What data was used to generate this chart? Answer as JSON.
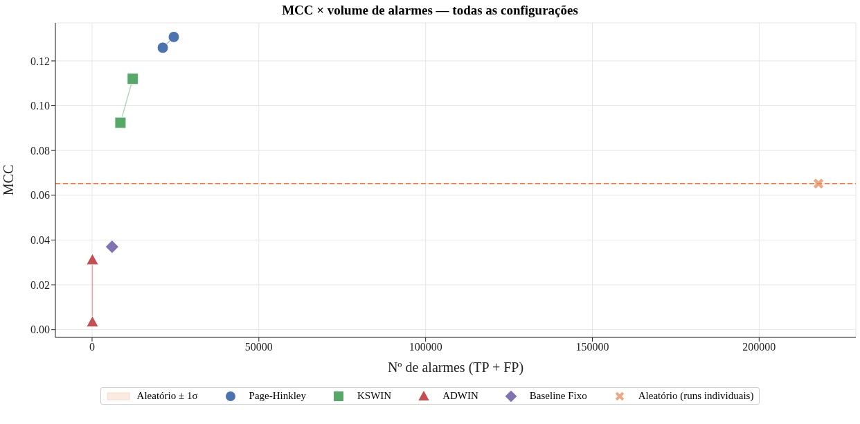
{
  "chart_data": {
    "type": "scatter",
    "title": "MCC × volume de alarmes — todas as configurações",
    "xlabel": "Nº de alarmes (TP + FP)",
    "ylabel": "MCC",
    "xlim": [
      -11000,
      229000
    ],
    "xticks": [
      0,
      50000,
      100000,
      150000,
      200000
    ],
    "ylim": [
      -0.0035,
      0.137
    ],
    "yticks": [
      {
        "value": 0,
        "label": "0.00"
      },
      0.02,
      0.04,
      0.06,
      0.08,
      {
        "value": 0.1,
        "label": "0.10"
      },
      0.12
    ],
    "grid": true,
    "legend": "bottom",
    "bands": [
      {
        "axis": "y",
        "from": 0.0648,
        "to": 0.0656,
        "label": "Aleatório ± 1σ",
        "color": "#f6dccb"
      }
    ],
    "ref_lines": [
      {
        "axis": "y",
        "value": 0.0652,
        "color": "#e8885a",
        "line_style": "dashed"
      }
    ],
    "series": [
      {
        "name": "Page-Hinkley",
        "type": "line",
        "marker": "circle",
        "color": "#4c72b0",
        "x": [
          21200,
          24500
        ],
        "values": [
          0.1259,
          0.1307
        ]
      },
      {
        "name": "KSWIN",
        "type": "line",
        "marker": "square",
        "color": "#55a868",
        "x": [
          8500,
          12200
        ],
        "values": [
          0.0924,
          0.112
        ]
      },
      {
        "name": "ADWIN",
        "type": "line",
        "marker": "triangle",
        "color": "#c44e52",
        "x": [
          100,
          100
        ],
        "values": [
          0.0311,
          0.0033
        ]
      },
      {
        "name": "Baseline Fixo",
        "type": "scatter",
        "marker": "diamond",
        "color": "#8172b2",
        "x": [
          6000
        ],
        "values": [
          0.037
        ]
      },
      {
        "name": "Aleatório (runs individuais)",
        "type": "scatter",
        "marker": "cross",
        "color": "#e8885a",
        "x": [
          217800
        ],
        "values": [
          0.0652
        ]
      }
    ]
  }
}
